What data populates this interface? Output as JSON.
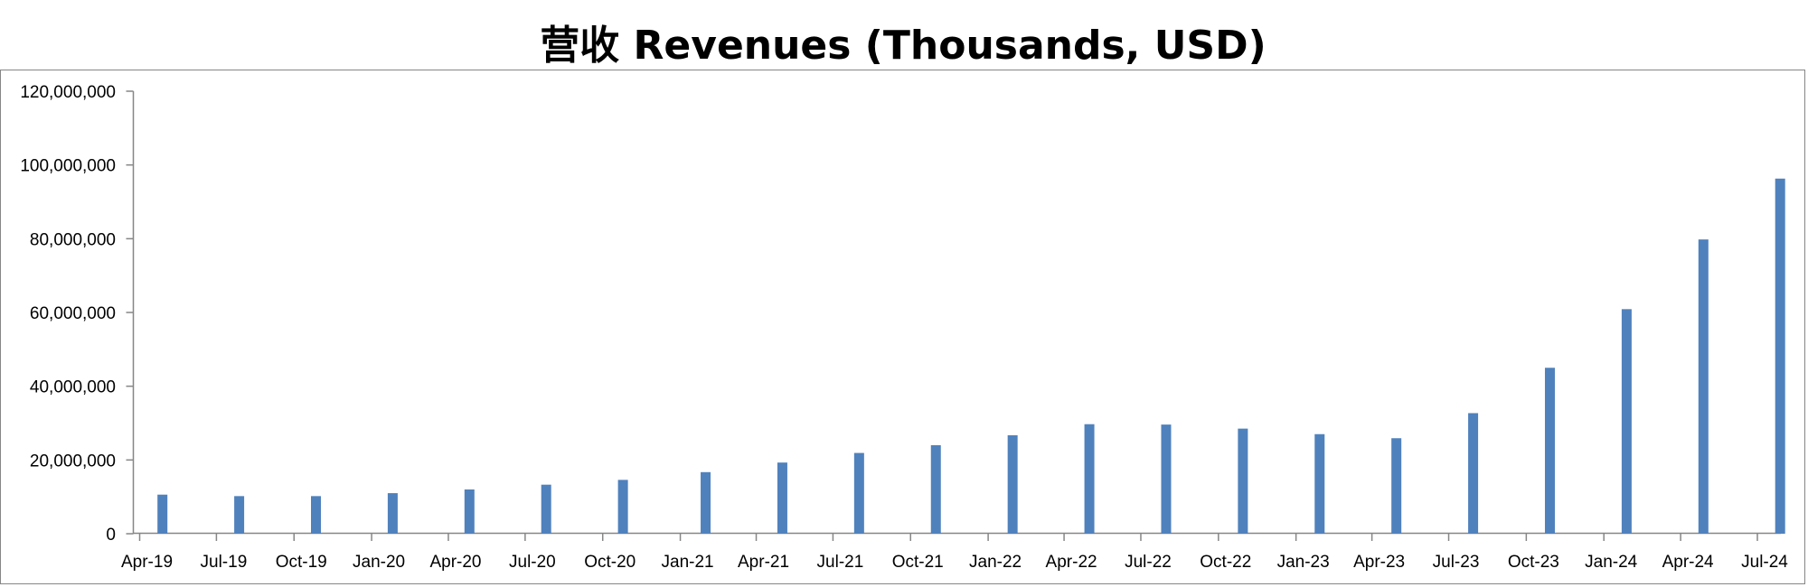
{
  "chart_data": {
    "type": "bar",
    "title": "营收 Revenues (Thousands, USD)",
    "xlabel": "",
    "ylabel": "",
    "ylim": [
      0,
      120000000
    ],
    "yticks": [
      "0",
      "20,000,000",
      "40,000,000",
      "60,000,000",
      "80,000,000",
      "100,000,000",
      "120,000,000"
    ],
    "x_tick_labels": [
      "Apr-19",
      "Jul-19",
      "Oct-19",
      "Jan-20",
      "Apr-20",
      "Jul-20",
      "Oct-20",
      "Jan-21",
      "Apr-21",
      "Jul-21",
      "Oct-21",
      "Jan-22",
      "Apr-22",
      "Jul-22",
      "Oct-22",
      "Jan-23",
      "Apr-23",
      "Jul-23",
      "Oct-23",
      "Jan-24",
      "Apr-24",
      "Jul-24"
    ],
    "x_tick_dates": [
      "2019-04-01",
      "2019-07-01",
      "2019-10-01",
      "2020-01-01",
      "2020-04-01",
      "2020-07-01",
      "2020-10-01",
      "2021-01-01",
      "2021-04-01",
      "2021-07-01",
      "2021-10-01",
      "2022-01-01",
      "2022-04-01",
      "2022-07-01",
      "2022-10-01",
      "2023-01-01",
      "2023-04-01",
      "2023-07-01",
      "2023-10-01",
      "2024-01-01",
      "2024-04-01",
      "2024-07-01"
    ],
    "series": [
      {
        "color": "#4f81bd",
        "x": [
          "2019-04-28",
          "2019-07-28",
          "2019-10-27",
          "2020-01-26",
          "2020-04-26",
          "2020-07-26",
          "2020-10-25",
          "2021-01-31",
          "2021-05-02",
          "2021-08-01",
          "2021-10-31",
          "2022-01-30",
          "2022-05-01",
          "2022-07-31",
          "2022-10-30",
          "2023-01-29",
          "2023-04-30",
          "2023-07-30",
          "2023-10-29",
          "2024-01-28",
          "2024-04-28",
          "2024-07-28"
        ],
        "values": [
          10600000,
          10200000,
          10200000,
          11000000,
          12000000,
          13300000,
          14600000,
          16700000,
          19300000,
          21900000,
          24000000,
          26700000,
          29700000,
          29600000,
          28500000,
          27000000,
          25900000,
          32700000,
          45000000,
          60900000,
          79800000,
          96300000
        ]
      }
    ],
    "grid": false,
    "legend": "none"
  }
}
